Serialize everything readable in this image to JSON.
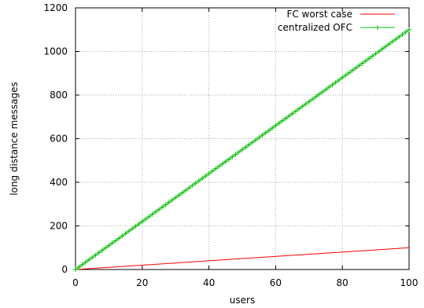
{
  "chart_data": {
    "type": "line",
    "xlabel": "users",
    "ylabel": "long distance messages",
    "xlim": [
      0,
      100
    ],
    "ylim": [
      0,
      1200
    ],
    "x_ticks": [
      0,
      20,
      40,
      60,
      80,
      100
    ],
    "y_ticks": [
      0,
      200,
      400,
      600,
      800,
      1000,
      1200
    ],
    "grid": true,
    "legend_position": "top-right",
    "series": [
      {
        "name": "FC worst case",
        "color": "#ff0000",
        "marker": "none",
        "x": [
          0,
          100
        ],
        "y": [
          0,
          100
        ]
      },
      {
        "name": "centralized OFC",
        "color": "#00c000",
        "marker": "plus",
        "x_start": 0,
        "x_end": 100,
        "x_step": 1,
        "slope": 11,
        "x": [
          0,
          20,
          40,
          60,
          80,
          100
        ],
        "y": [
          0,
          220,
          440,
          660,
          880,
          1100
        ]
      }
    ]
  }
}
